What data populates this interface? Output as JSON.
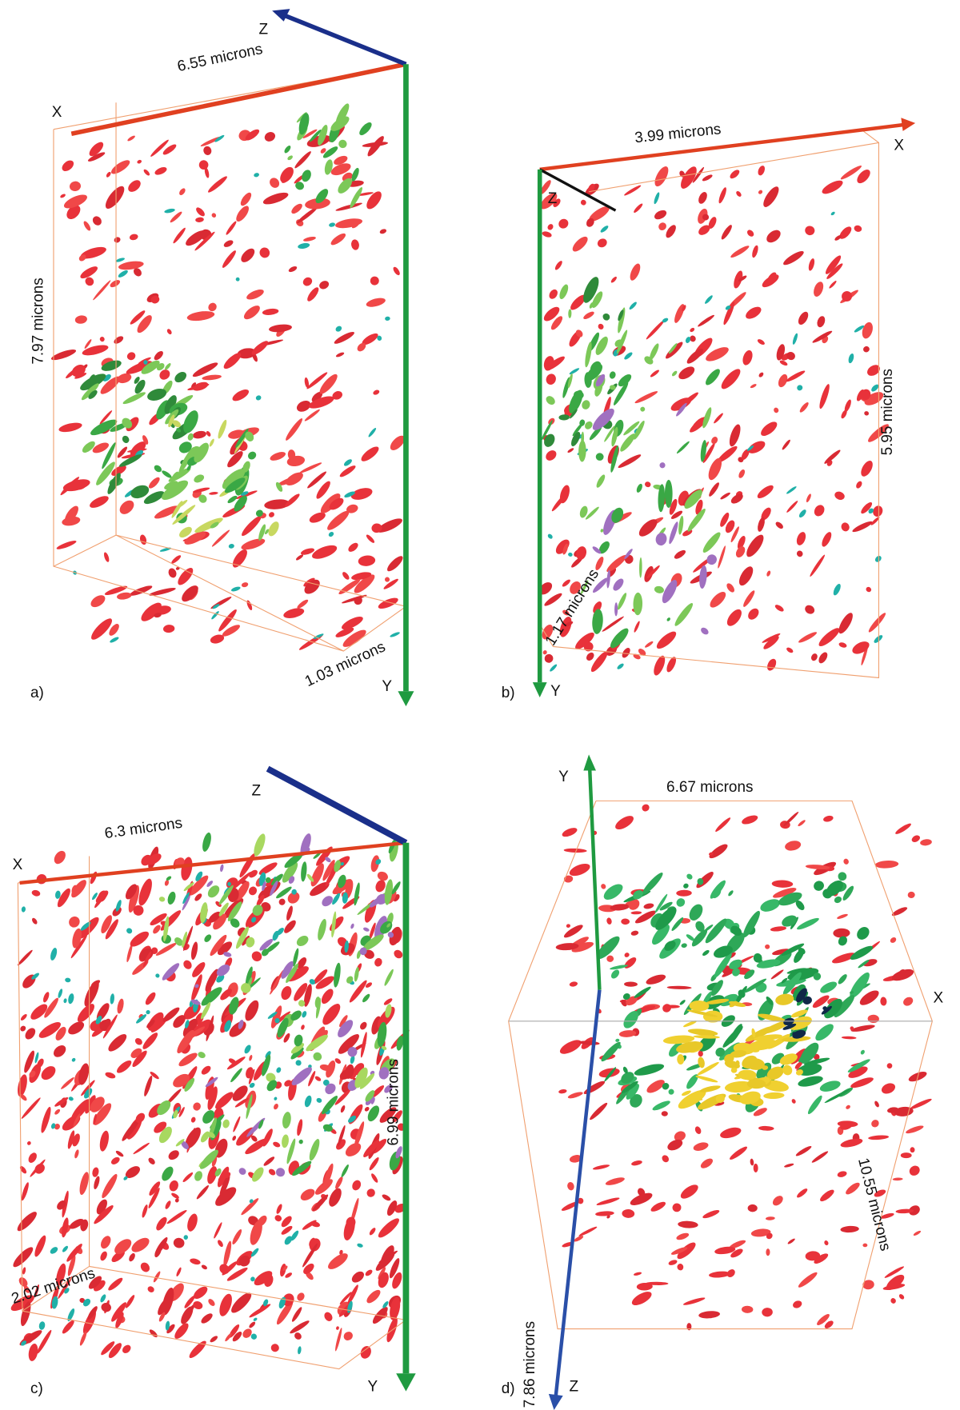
{
  "panels": [
    {
      "label": "a)",
      "axes": {
        "x": "X",
        "y": "Y",
        "z": "Z"
      },
      "dimensions": [
        "6.55 microns",
        "7.97 microns",
        "1.03 microns"
      ]
    },
    {
      "label": "b)",
      "axes": {
        "x": "X",
        "y": "Y",
        "z": "Z"
      },
      "dimensions": [
        "3.99 microns",
        "5.95 microns",
        "1.17 microns"
      ]
    },
    {
      "label": "c)",
      "axes": {
        "x": "X",
        "y": "Y",
        "z": "Z"
      },
      "dimensions": [
        "6.3 microns",
        "6.99 microns",
        "2.02 microns"
      ]
    },
    {
      "label": "d)",
      "axes": {
        "x": "X",
        "y": "Y",
        "z": "Z"
      },
      "dimensions": [
        "6.67 microns",
        "7.86 microns",
        "10.55 microns"
      ]
    }
  ]
}
